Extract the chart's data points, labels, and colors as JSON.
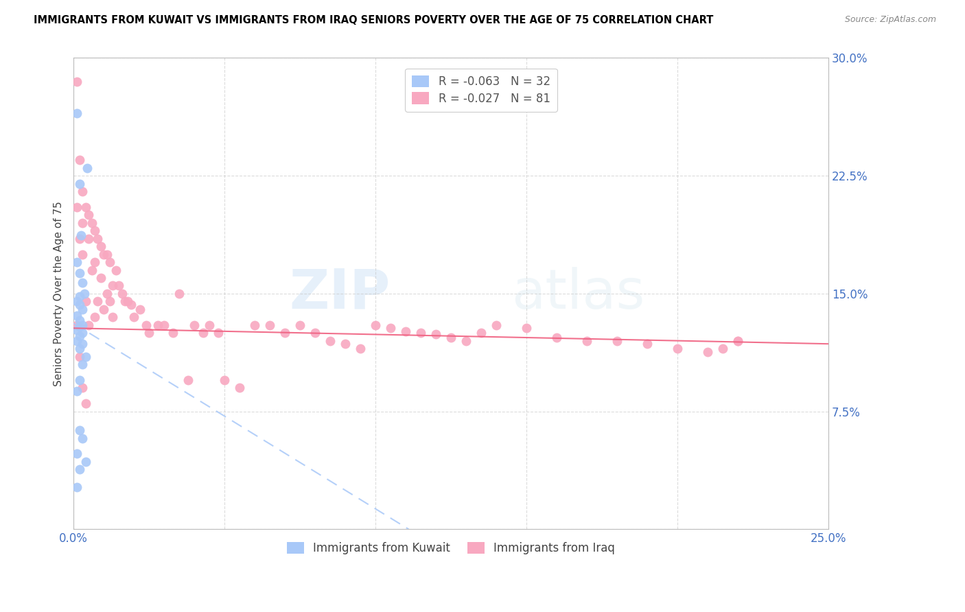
{
  "title": "IMMIGRANTS FROM KUWAIT VS IMMIGRANTS FROM IRAQ SENIORS POVERTY OVER THE AGE OF 75 CORRELATION CHART",
  "source": "Source: ZipAtlas.com",
  "ylabel": "Seniors Poverty Over the Age of 75",
  "yticks": [
    0.0,
    0.075,
    0.15,
    0.225,
    0.3
  ],
  "ytick_labels": [
    "",
    "7.5%",
    "15.0%",
    "22.5%",
    "30.0%"
  ],
  "xticks": [
    0.0,
    0.05,
    0.1,
    0.15,
    0.2,
    0.25
  ],
  "xtick_labels": [
    "0.0%",
    "",
    "",
    "",
    "",
    "25.0%"
  ],
  "xlim": [
    0.0,
    0.25
  ],
  "ylim": [
    0.0,
    0.3
  ],
  "watermark_zip": "ZIP",
  "watermark_atlas": "atlas",
  "legend_kuwait": "R = -0.063   N = 32",
  "legend_iraq": "R = -0.027   N = 81",
  "color_kuwait": "#a8c8f8",
  "color_iraq": "#f8a8c0",
  "color_kuwait_line": "#a8c8f8",
  "color_iraq_line": "#f06080",
  "color_axis_labels": "#4472c4",
  "color_legend_r_kuwait": "#4472c4",
  "color_legend_n_kuwait": "#4472c4",
  "color_legend_r_iraq": "#f06080",
  "color_legend_n_iraq": "#4472c4",
  "kuwait_slope": -1.18,
  "kuwait_intercept": 0.131,
  "iraq_slope": -0.04,
  "iraq_intercept": 0.128,
  "kuwait_x": [
    0.001,
    0.0045,
    0.002,
    0.0025,
    0.001,
    0.002,
    0.003,
    0.0035,
    0.002,
    0.001,
    0.002,
    0.003,
    0.001,
    0.002,
    0.003,
    0.002,
    0.001,
    0.003,
    0.002,
    0.001,
    0.003,
    0.002,
    0.004,
    0.003,
    0.002,
    0.001,
    0.002,
    0.003,
    0.001,
    0.004,
    0.002,
    0.001
  ],
  "kuwait_y": [
    0.265,
    0.23,
    0.22,
    0.187,
    0.17,
    0.163,
    0.157,
    0.15,
    0.148,
    0.145,
    0.143,
    0.14,
    0.136,
    0.133,
    0.13,
    0.129,
    0.127,
    0.125,
    0.123,
    0.12,
    0.118,
    0.115,
    0.11,
    0.105,
    0.095,
    0.088,
    0.063,
    0.058,
    0.048,
    0.043,
    0.038,
    0.027
  ],
  "iraq_x": [
    0.001,
    0.001,
    0.002,
    0.002,
    0.003,
    0.003,
    0.003,
    0.004,
    0.004,
    0.005,
    0.005,
    0.005,
    0.006,
    0.006,
    0.007,
    0.007,
    0.007,
    0.008,
    0.008,
    0.009,
    0.009,
    0.01,
    0.01,
    0.011,
    0.011,
    0.012,
    0.012,
    0.013,
    0.013,
    0.014,
    0.015,
    0.016,
    0.017,
    0.018,
    0.019,
    0.02,
    0.022,
    0.024,
    0.025,
    0.028,
    0.03,
    0.033,
    0.035,
    0.038,
    0.04,
    0.043,
    0.045,
    0.048,
    0.05,
    0.055,
    0.06,
    0.065,
    0.07,
    0.075,
    0.08,
    0.085,
    0.09,
    0.095,
    0.1,
    0.105,
    0.11,
    0.115,
    0.12,
    0.125,
    0.13,
    0.135,
    0.14,
    0.15,
    0.16,
    0.17,
    0.18,
    0.19,
    0.2,
    0.21,
    0.22,
    0.001,
    0.002,
    0.003,
    0.004,
    0.22,
    0.215
  ],
  "iraq_y": [
    0.285,
    0.205,
    0.235,
    0.185,
    0.215,
    0.195,
    0.175,
    0.205,
    0.145,
    0.2,
    0.185,
    0.13,
    0.195,
    0.165,
    0.19,
    0.17,
    0.135,
    0.185,
    0.145,
    0.18,
    0.16,
    0.175,
    0.14,
    0.175,
    0.15,
    0.17,
    0.145,
    0.155,
    0.135,
    0.165,
    0.155,
    0.15,
    0.145,
    0.145,
    0.143,
    0.135,
    0.14,
    0.13,
    0.125,
    0.13,
    0.13,
    0.125,
    0.15,
    0.095,
    0.13,
    0.125,
    0.13,
    0.125,
    0.095,
    0.09,
    0.13,
    0.13,
    0.125,
    0.13,
    0.125,
    0.12,
    0.118,
    0.115,
    0.13,
    0.128,
    0.126,
    0.125,
    0.124,
    0.122,
    0.12,
    0.125,
    0.13,
    0.128,
    0.122,
    0.12,
    0.12,
    0.118,
    0.115,
    0.113,
    0.12,
    0.13,
    0.11,
    0.09,
    0.08,
    0.12,
    0.115
  ]
}
